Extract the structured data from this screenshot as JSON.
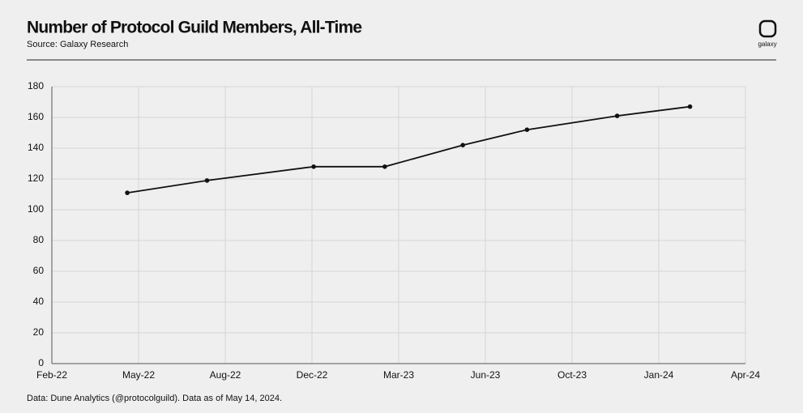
{
  "header": {
    "title": "Number of Protocol Guild Members, All-Time",
    "source": "Source: Galaxy Research",
    "logo": "galaxy"
  },
  "footer": "Data: Dune Analytics (@protocolguild). Data as of May 14, 2024.",
  "chart_data": {
    "type": "line",
    "x": [
      0.87,
      1.79,
      3.02,
      3.84,
      4.74,
      5.48,
      6.52,
      7.36
    ],
    "series": [
      {
        "name": "Protocol Guild Members",
        "color": "#111111",
        "values": [
          111,
          119,
          128,
          128,
          142,
          152,
          161,
          167
        ]
      }
    ],
    "xlim": [
      0,
      8
    ],
    "xticks": [
      {
        "value": 0,
        "label": "Feb-22"
      },
      {
        "value": 1,
        "label": "May-22"
      },
      {
        "value": 2,
        "label": "Aug-22"
      },
      {
        "value": 3,
        "label": "Dec-22"
      },
      {
        "value": 4,
        "label": "Mar-23"
      },
      {
        "value": 5,
        "label": "Jun-23"
      },
      {
        "value": 6,
        "label": "Oct-23"
      },
      {
        "value": 7,
        "label": "Jan-24"
      },
      {
        "value": 8,
        "label": "Apr-24"
      }
    ],
    "ylim": [
      0,
      180
    ],
    "yticks": [
      0,
      20,
      40,
      60,
      80,
      100,
      120,
      140,
      160,
      180
    ],
    "grid": true
  }
}
